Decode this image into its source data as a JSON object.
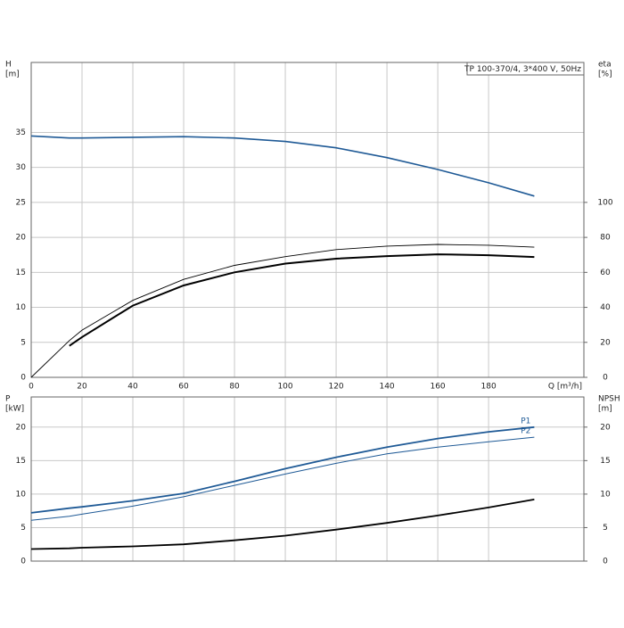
{
  "chart_data": [
    {
      "type": "line",
      "annotation": "TP 100-370/4, 3*400 V, 50Hz",
      "x_label": "Q [m³/h]",
      "y_label": [
        "H",
        "[m]"
      ],
      "y2_label": [
        "eta",
        "[%]"
      ],
      "x": [
        0,
        15,
        20,
        40,
        60,
        80,
        100,
        120,
        140,
        160,
        180,
        198
      ],
      "xlim": [
        0,
        217.5
      ],
      "xticks": [
        0,
        20,
        40,
        60,
        80,
        100,
        120,
        140,
        160,
        180
      ],
      "ylim": [
        0,
        45
      ],
      "yticks": [
        0,
        5,
        10,
        15,
        20,
        25,
        30,
        35
      ],
      "y2lim": [
        0,
        180
      ],
      "y2ticks": [
        0,
        20,
        40,
        60,
        80,
        100
      ],
      "grid": true,
      "series": [
        {
          "color": "#1f5a96",
          "line_width": 1.6,
          "values": [
            34.5,
            34.2,
            34.2,
            34.3,
            34.4,
            34.2,
            33.7,
            32.8,
            31.4,
            29.7,
            27.8,
            25.9
          ]
        },
        {
          "color": "#000000",
          "line_width": 0.9,
          "axis": "y2",
          "values": [
            0,
            21,
            27,
            44,
            56,
            64,
            69,
            73,
            75,
            76,
            75.5,
            74.4
          ]
        },
        {
          "color": "#000000",
          "line_width": 2,
          "axis": "y2",
          "values": [
            null,
            18,
            23,
            41,
            52.5,
            60,
            65,
            67.8,
            69.3,
            70.3,
            69.8,
            68.8
          ]
        }
      ]
    },
    {
      "type": "line",
      "y_label": [
        "P",
        "[kW]"
      ],
      "y2_label": [
        "NPSH",
        "[m]"
      ],
      "x": [
        0,
        15,
        20,
        40,
        60,
        80,
        100,
        120,
        140,
        160,
        180,
        198
      ],
      "xlim": [
        0,
        217.5
      ],
      "xgrid": [
        0,
        20,
        40,
        60,
        80,
        100,
        120,
        140,
        160,
        180
      ],
      "ylim": [
        0,
        24.5
      ],
      "yticks": [
        0,
        5,
        10,
        15,
        20
      ],
      "y2lim": [
        0,
        24.5
      ],
      "y2ticks": [
        0,
        5,
        10,
        15,
        20
      ],
      "grid": true,
      "series": [
        {
          "name": "P1",
          "color": "#1f5a96",
          "line_width": 1.8,
          "values": [
            7.2,
            7.9,
            8.1,
            9,
            10.1,
            11.9,
            13.8,
            15.5,
            17,
            18.3,
            19.3,
            20
          ]
        },
        {
          "name": "P2",
          "color": "#1f5a96",
          "line_width": 1,
          "values": [
            6.1,
            6.7,
            7.0,
            8.2,
            9.6,
            11.3,
            13,
            14.6,
            16,
            17,
            17.8,
            18.5
          ]
        },
        {
          "color": "#000000",
          "line_width": 1.8,
          "axis": "y2",
          "values": [
            1.8,
            1.9,
            2.0,
            2.2,
            2.5,
            3.1,
            3.8,
            4.7,
            5.7,
            6.8,
            8.0,
            9.2
          ]
        }
      ]
    }
  ]
}
